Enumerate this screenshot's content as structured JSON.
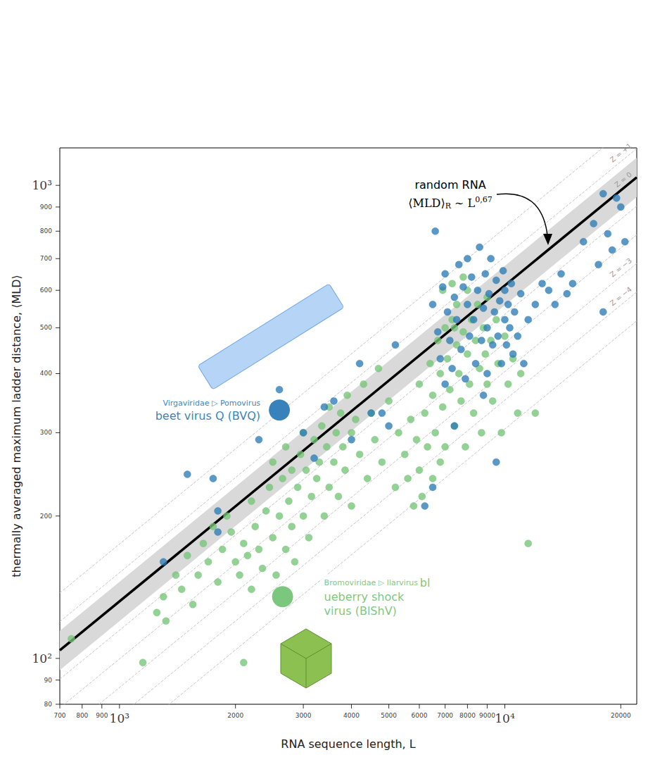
{
  "chart_data": {
    "type": "scatter",
    "log": true,
    "grid": false,
    "x_label": "RNA sequence length, L",
    "y_label": "thermally averaged maximum ladder distance, ⟨MLD⟩",
    "xlim": [
      700,
      22000
    ],
    "ylim": [
      80,
      1200
    ],
    "xticks": [
      700,
      800,
      900,
      {
        "value": 1000,
        "label": "10³"
      },
      2000,
      3000,
      4000,
      5000,
      6000,
      7000,
      8000,
      9000,
      {
        "value": 10000,
        "label": "10⁴"
      },
      20000
    ],
    "yticks": [
      80,
      90,
      {
        "value": 100,
        "label": "10²"
      },
      200,
      300,
      400,
      500,
      600,
      700,
      800,
      900,
      {
        "value": 1000,
        "label": "10³"
      }
    ],
    "series": [
      {
        "color": "#74c476",
        "marker": "circle",
        "x": [
          750,
          1150,
          1250,
          1300,
          1320,
          1400,
          1450,
          1500,
          1550,
          1600,
          1650,
          1700,
          1750,
          1800,
          1850,
          1900,
          1950,
          2000,
          2050,
          2100,
          2100,
          2150,
          2200,
          2200,
          2250,
          2300,
          2350,
          2400,
          2450,
          2500,
          2500,
          2550,
          2600,
          2650,
          2700,
          2700,
          2750,
          2800,
          2800,
          2850,
          2900,
          2950,
          3000,
          3000,
          3050,
          3100,
          3150,
          3200,
          3250,
          3300,
          3350,
          3400,
          3450,
          3500,
          3500,
          3600,
          3650,
          3700,
          3750,
          3800,
          3850,
          3900,
          4000,
          4000,
          4100,
          4200,
          4300,
          4400,
          4500,
          4600,
          4700,
          4800,
          5000,
          5200,
          5300,
          5500,
          5600,
          5700,
          5800,
          5900,
          6000,
          6000,
          6100,
          6200,
          6300,
          6400,
          6500,
          6500,
          6600,
          6700,
          6800,
          6800,
          6900,
          7000,
          7000,
          7100,
          7200,
          7300,
          7400,
          7500,
          7500,
          7600,
          7700,
          7800,
          7900,
          8000,
          8000,
          8100,
          8200,
          8300,
          8400,
          8500,
          8600,
          8700,
          8800,
          8900,
          9000,
          9000,
          9200,
          9300,
          9500,
          9600,
          9800,
          10000,
          10200,
          10500,
          10800,
          11000,
          11500,
          12000,
          7400,
          7300,
          6900,
          7800
        ],
        "values": [
          110,
          98,
          125,
          135,
          120,
          150,
          140,
          165,
          130,
          150,
          175,
          160,
          190,
          145,
          170,
          200,
          185,
          160,
          150,
          98,
          175,
          165,
          140,
          215,
          190,
          170,
          155,
          205,
          230,
          180,
          260,
          150,
          200,
          240,
          170,
          280,
          215,
          190,
          250,
          160,
          230,
          270,
          200,
          300,
          250,
          180,
          220,
          290,
          240,
          260,
          310,
          200,
          280,
          230,
          340,
          260,
          300,
          220,
          330,
          280,
          250,
          360,
          300,
          210,
          320,
          270,
          380,
          240,
          330,
          290,
          410,
          260,
          350,
          230,
          300,
          270,
          240,
          320,
          210,
          290,
          250,
          380,
          220,
          330,
          280,
          420,
          240,
          360,
          300,
          470,
          260,
          400,
          340,
          500,
          280,
          430,
          370,
          520,
          310,
          460,
          560,
          400,
          350,
          490,
          280,
          440,
          600,
          380,
          520,
          330,
          470,
          560,
          410,
          300,
          500,
          440,
          380,
          580,
          470,
          350,
          520,
          420,
          300,
          480,
          380,
          430,
          330,
          400,
          175,
          330,
          500,
          620,
          600,
          640
        ]
      },
      {
        "color": "#2c7bb6",
        "marker": "circle",
        "x": [
          1300,
          1500,
          1750,
          1800,
          1800,
          2300,
          2600,
          3000,
          3200,
          3400,
          3600,
          4000,
          4200,
          4500,
          4800,
          5000,
          5200,
          6200,
          6500,
          6500,
          6700,
          6800,
          6900,
          7000,
          7000,
          7100,
          7200,
          7300,
          7400,
          7500,
          7600,
          7700,
          7800,
          7900,
          8000,
          8000,
          8100,
          8200,
          8300,
          8400,
          8500,
          8600,
          8700,
          8800,
          8900,
          9000,
          9000,
          9100,
          9200,
          9300,
          9400,
          9500,
          9600,
          9700,
          9800,
          9900,
          10000,
          10000,
          10100,
          10200,
          10300,
          10400,
          10500,
          10600,
          10800,
          11000,
          11200,
          11500,
          12000,
          12500,
          13000,
          13500,
          14000,
          14500,
          15000,
          16000,
          17000,
          17500,
          18000,
          18000,
          18500,
          19000,
          19500,
          20000,
          20500,
          9500,
          6600,
          7400,
          8800
        ],
        "values": [
          160,
          245,
          240,
          205,
          185,
          290,
          370,
          300,
          265,
          340,
          350,
          290,
          420,
          330,
          330,
          310,
          460,
          210,
          560,
          230,
          490,
          430,
          610,
          380,
          650,
          540,
          470,
          410,
          580,
          520,
          680,
          450,
          610,
          390,
          560,
          700,
          480,
          640,
          520,
          420,
          600,
          740,
          470,
          550,
          650,
          500,
          400,
          590,
          700,
          460,
          540,
          630,
          480,
          570,
          420,
          660,
          520,
          600,
          460,
          560,
          500,
          620,
          440,
          540,
          480,
          590,
          420,
          520,
          560,
          620,
          600,
          560,
          650,
          590,
          620,
          760,
          830,
          680,
          540,
          960,
          790,
          730,
          940,
          900,
          760,
          260,
          800,
          310,
          360
        ]
      }
    ],
    "highlights": [
      {
        "group": "Virgaviridae ▷ Pomovirus",
        "label": "beet virus Q (BVQ)",
        "color": "#2c7bb6",
        "marker": "circle",
        "x": 2600,
        "y": 335
      },
      {
        "group": "Bromoviridae ▷ Ilarvirus",
        "label": "blueberry shock virus (BlShV)",
        "color": "#74c476",
        "marker": "circle",
        "x": 2650,
        "y": 135
      }
    ],
    "reference": {
      "type": "line",
      "label": "random RNA",
      "formula": {
        "text": "⟨MLD⟩",
        "subscript": "R",
        "relation": " ∼ L",
        "superscript": "0,67"
      },
      "color": "#000000",
      "line_style": "solid",
      "z_label": "Z = 0",
      "x": [
        700,
        22000
      ],
      "values": [
        104,
        1040
      ],
      "band": {
        "color": "#d9d9d9",
        "lower": [
          94.5,
          945
        ],
        "upper": [
          114.4,
          1144
        ]
      },
      "z_lines": [
        {
          "line_style": "dashed",
          "values": [
            137.5,
            1375
          ]
        },
        {
          "line_style": "dashed",
          "label": "Z = +1",
          "values": [
            119.6,
            1196
          ]
        },
        {
          "line_style": "dashed",
          "values": [
            90.4,
            904
          ]
        },
        {
          "line_style": "dashed",
          "values": [
            78.6,
            786
          ]
        },
        {
          "line_style": "dashed",
          "label": "Z = −3",
          "values": [
            68.4,
            684
          ]
        },
        {
          "line_style": "dashed",
          "label": "Z = −4",
          "values": [
            59.5,
            595
          ]
        },
        {
          "line_style": "dashed",
          "values": [
            51.7,
            517
          ]
        }
      ]
    }
  }
}
